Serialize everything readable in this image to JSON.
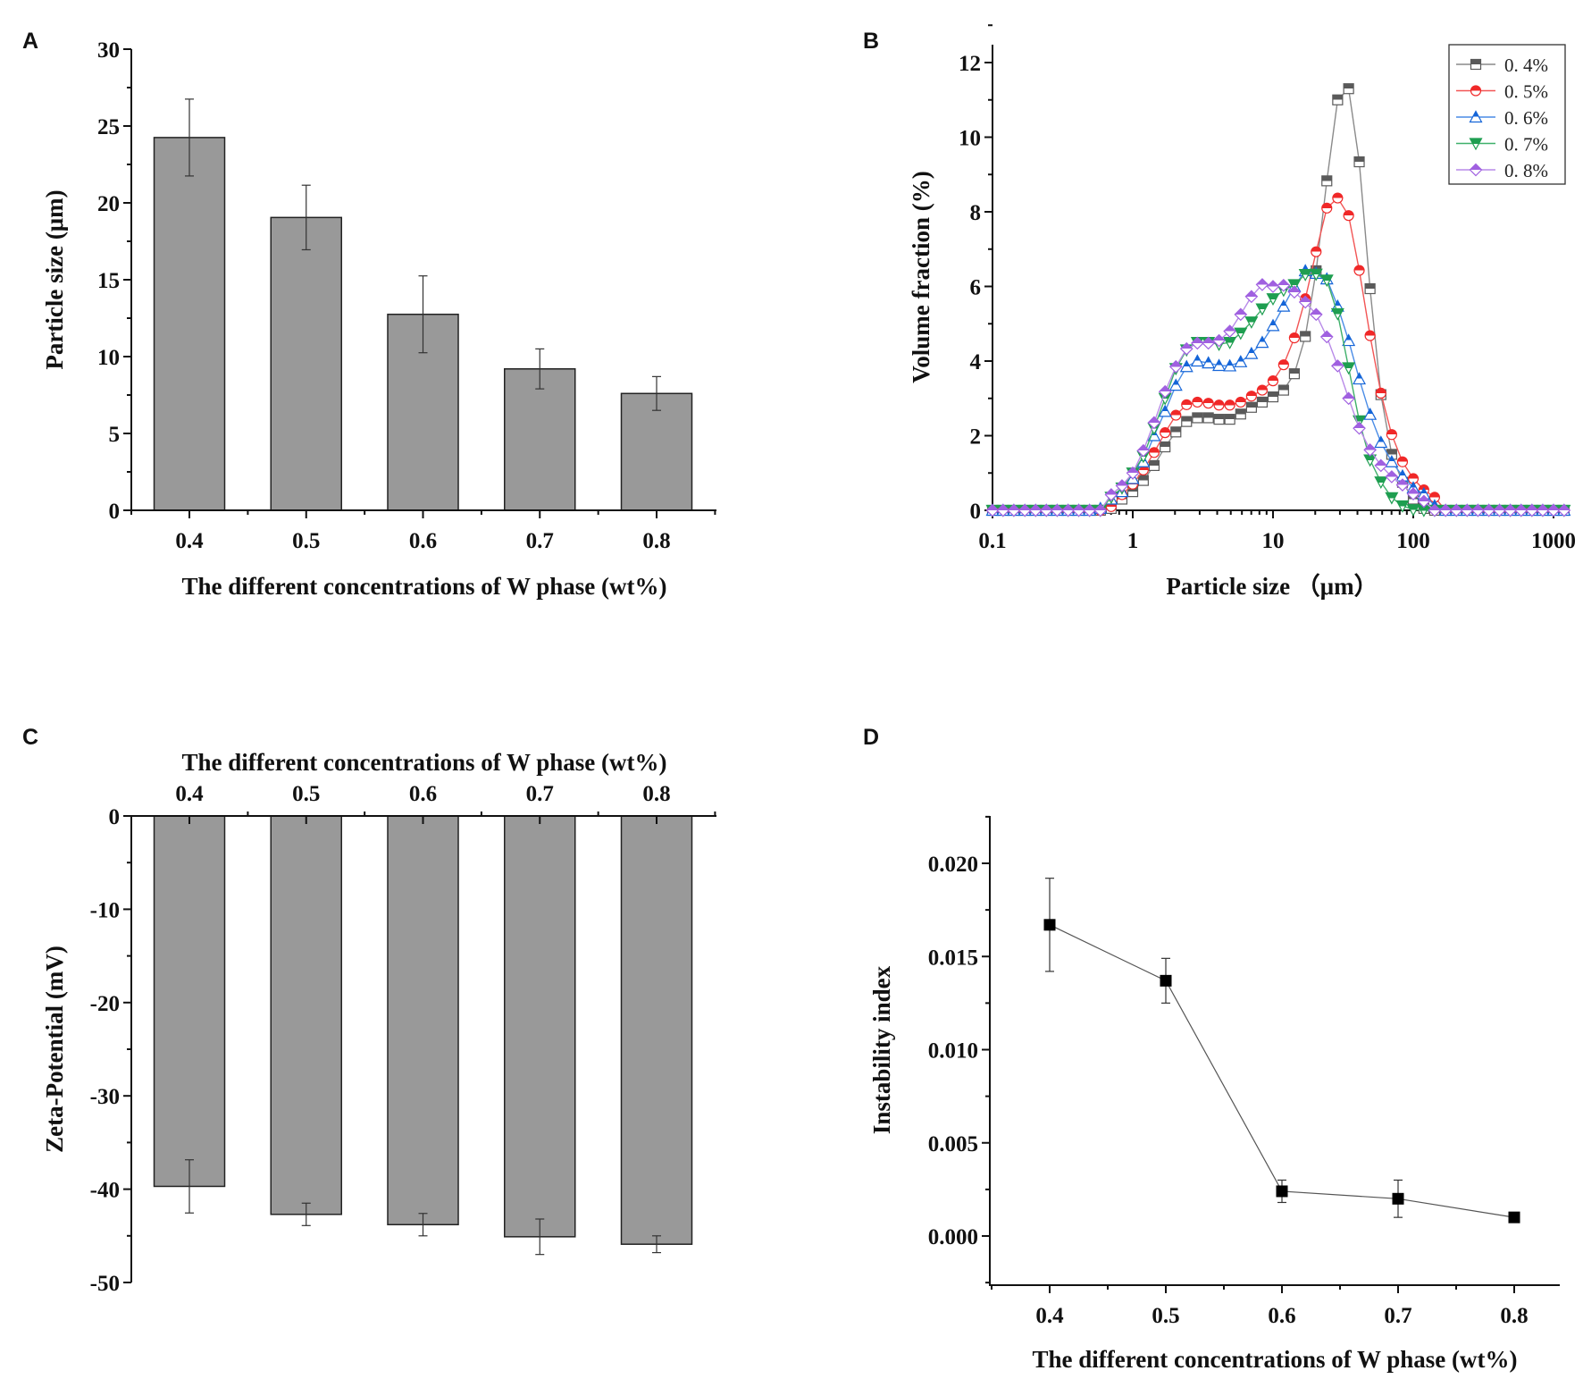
{
  "panel_labels": [
    "A",
    "B",
    "C",
    "D"
  ],
  "chart_data": [
    {
      "type": "bar",
      "title": "",
      "xlabel": "The different concentrations of W phase (wt%)",
      "ylabel": "Particle size (μm)",
      "categories": [
        "0.4",
        "0.5",
        "0.6",
        "0.7",
        "0.8"
      ],
      "values": [
        24.25,
        19.05,
        12.75,
        9.2,
        7.6
      ],
      "errors": [
        2.5,
        2.1,
        2.5,
        1.3,
        1.1
      ],
      "ylim": [
        0,
        30
      ],
      "yticks": [
        "0",
        "5",
        "10",
        "15",
        "20",
        "25",
        "30"
      ],
      "bar_color": "#999999"
    },
    {
      "type": "line",
      "title": "",
      "xlabel": "Particle size （μm）",
      "ylabel": "Volume fraction (%)",
      "xscale": "log",
      "xlim": [
        0.1,
        1250
      ],
      "ylim": [
        0,
        12.5
      ],
      "xticks": [
        "0.1",
        "1",
        "10",
        "100",
        "1000"
      ],
      "yticks": [
        "0",
        "2",
        "4",
        "6",
        "8",
        "10",
        "12"
      ],
      "legend_position": "top-right",
      "x": [
        0.1,
        0.119,
        0.142,
        0.17,
        0.203,
        0.242,
        0.289,
        0.346,
        0.412,
        0.492,
        0.588,
        0.702,
        0.838,
        1,
        1.19,
        1.42,
        1.7,
        2.03,
        2.42,
        2.89,
        3.46,
        4.12,
        4.92,
        5.88,
        7.02,
        8.38,
        10,
        11.9,
        14.2,
        17,
        20.3,
        24.2,
        28.9,
        34.6,
        41.2,
        49.2,
        58.8,
        70.2,
        83.8,
        100,
        119,
        142,
        170,
        203,
        242,
        289,
        346,
        412,
        492,
        588,
        702,
        838,
        1000,
        1190
      ],
      "series": [
        {
          "name": "0. 4%",
          "color": "#5a5a5a",
          "line_color": "#8a8a8a",
          "marker": "square",
          "values": [
            0,
            0,
            0,
            0,
            0,
            0,
            0,
            0,
            0,
            0,
            0,
            0.05,
            0.3,
            0.5,
            0.8,
            1.2,
            1.7,
            2.1,
            2.38,
            2.48,
            2.48,
            2.44,
            2.44,
            2.58,
            2.76,
            2.9,
            3.04,
            3.22,
            3.66,
            4.66,
            6.42,
            8.83,
            11.0,
            11.3,
            9.34,
            5.94,
            3.1,
            1.5,
            0.75,
            0.3,
            0.05,
            0,
            0,
            0,
            0,
            0,
            0,
            0,
            0,
            0,
            0,
            0,
            0,
            0
          ]
        },
        {
          "name": "0. 5%",
          "color": "#f02828",
          "line_color": "#f25555",
          "marker": "circle",
          "values": [
            0,
            0,
            0,
            0,
            0,
            0,
            0,
            0,
            0,
            0,
            0,
            0.1,
            0.42,
            0.7,
            1.08,
            1.55,
            2.08,
            2.55,
            2.83,
            2.9,
            2.87,
            2.82,
            2.82,
            2.9,
            3.06,
            3.22,
            3.47,
            3.9,
            4.62,
            5.67,
            6.93,
            8.1,
            8.37,
            7.9,
            6.43,
            4.68,
            3.14,
            2.03,
            1.3,
            0.85,
            0.55,
            0.35,
            0,
            0,
            0,
            0,
            0,
            0,
            0,
            0,
            0,
            0,
            0,
            0
          ]
        },
        {
          "name": "0. 6%",
          "color": "#1565d8",
          "line_color": "#4a8ce6",
          "marker": "triangle-up",
          "values": [
            0,
            0,
            0,
            0,
            0,
            0,
            0,
            0,
            0,
            0,
            0.05,
            0.3,
            0.5,
            0.85,
            1.3,
            2.0,
            2.65,
            3.35,
            3.85,
            4.0,
            3.95,
            3.88,
            3.87,
            3.98,
            4.2,
            4.5,
            4.95,
            5.47,
            6.0,
            6.42,
            6.35,
            6.2,
            5.47,
            4.55,
            3.52,
            2.57,
            1.82,
            1.3,
            0.92,
            0.6,
            0.44,
            0.12,
            0,
            0,
            0,
            0,
            0,
            0,
            0,
            0,
            0,
            0,
            0,
            0
          ]
        },
        {
          "name": "0. 7%",
          "color": "#1e9e50",
          "line_color": "#3fb06a",
          "marker": "triangle-down",
          "values": [
            0,
            0,
            0,
            0,
            0,
            0,
            0,
            0,
            0,
            0,
            0,
            0.35,
            0.6,
            1.0,
            1.45,
            2.2,
            3.0,
            3.8,
            4.3,
            4.5,
            4.5,
            4.45,
            4.5,
            4.75,
            5.05,
            5.4,
            5.67,
            5.9,
            6.05,
            6.32,
            6.33,
            6.17,
            5.27,
            3.82,
            2.4,
            1.35,
            0.76,
            0.34,
            0.12,
            0.02,
            0,
            0,
            0,
            0,
            0,
            0,
            0,
            0,
            0,
            0,
            0,
            0,
            0,
            0
          ]
        },
        {
          "name": "0. 8%",
          "color": "#a060e0",
          "line_color": "#b88ae8",
          "marker": "diamond",
          "values": [
            0,
            0,
            0,
            0,
            0,
            0,
            0,
            0,
            0,
            0,
            0,
            0.42,
            0.66,
            1.0,
            1.6,
            2.35,
            3.18,
            3.85,
            4.33,
            4.48,
            4.48,
            4.55,
            4.8,
            5.25,
            5.73,
            6.05,
            6.0,
            6.03,
            5.85,
            5.58,
            5.25,
            4.65,
            3.87,
            3.0,
            2.2,
            1.62,
            1.2,
            0.9,
            0.68,
            0.44,
            0.24,
            0,
            0,
            0,
            0,
            0,
            0,
            0,
            0,
            0,
            0,
            0,
            0,
            0
          ]
        }
      ]
    },
    {
      "type": "bar",
      "title": "",
      "xlabel": "The different concentrations of W phase (wt%)",
      "xaxis_position": "top",
      "ylabel": "Zeta-Potential (mV)",
      "categories": [
        "0.4",
        "0.5",
        "0.6",
        "0.7",
        "0.8"
      ],
      "values": [
        -39.7,
        -42.7,
        -43.8,
        -45.1,
        -45.9
      ],
      "errors": [
        2.85,
        1.2,
        1.2,
        1.9,
        0.9
      ],
      "ylim": [
        -50,
        0
      ],
      "yticks": [
        "0",
        "-10",
        "-20",
        "-30",
        "-40",
        "-50"
      ],
      "bar_color": "#999999"
    },
    {
      "type": "line",
      "title": "",
      "xlabel": "The different concentrations of W phase (wt%)",
      "ylabel": "Instability index",
      "x": [
        0.4,
        0.5,
        0.6,
        0.7,
        0.8
      ],
      "values": [
        0.0167,
        0.0137,
        0.0024,
        0.002,
        0.001
      ],
      "errors": [
        0.0025,
        0.0012,
        0.0006,
        0.001,
        0.0
      ],
      "xlim": [
        0.35,
        0.84
      ],
      "ylim": [
        -0.0025,
        0.0225
      ],
      "xticks": [
        "0.4",
        "0.5",
        "0.6",
        "0.7",
        "0.8"
      ],
      "yticks": [
        "0.000",
        "0.005",
        "0.010",
        "0.015",
        "0.020"
      ],
      "marker": "square",
      "color": "#000000"
    }
  ]
}
